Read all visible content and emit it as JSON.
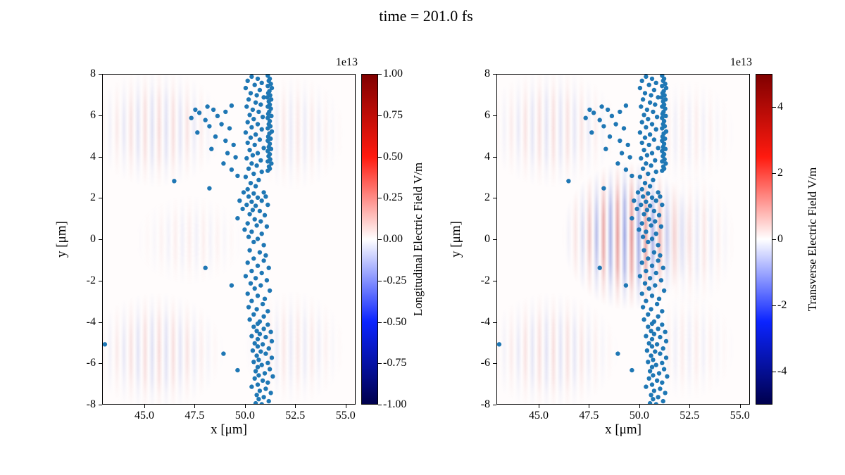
{
  "chart_data": {
    "type": "scatter+heatmap",
    "title": "time = 201.0 fs",
    "colormap": {
      "name": "seismic",
      "stops": [
        {
          "pos": 0.0,
          "color": "#00004d"
        },
        {
          "pos": 0.25,
          "color": "#0b24ff"
        },
        {
          "pos": 0.5,
          "color": "#ffffff"
        },
        {
          "pos": 0.75,
          "color": "#ff1a0f"
        },
        {
          "pos": 1.0,
          "color": "#800000"
        }
      ]
    },
    "scatter": {
      "marker_color": "#1f77b4",
      "marker_radius_px": 3.2,
      "points": [
        [
          51.1,
          7.95
        ],
        [
          51.2,
          7.8
        ],
        [
          51.15,
          7.7
        ],
        [
          51.25,
          7.55
        ],
        [
          51.1,
          7.45
        ],
        [
          51.3,
          7.35
        ],
        [
          51.18,
          7.2
        ],
        [
          51.12,
          7.1
        ],
        [
          51.22,
          7.0
        ],
        [
          51.08,
          6.9
        ],
        [
          51.27,
          6.8
        ],
        [
          51.15,
          6.7
        ],
        [
          51.2,
          6.55
        ],
        [
          51.1,
          6.45
        ],
        [
          51.25,
          6.35
        ],
        [
          51.17,
          6.2
        ],
        [
          51.12,
          6.1
        ],
        [
          51.28,
          6.0
        ],
        [
          51.1,
          5.9
        ],
        [
          51.2,
          5.75
        ],
        [
          51.15,
          5.6
        ],
        [
          51.23,
          5.5
        ],
        [
          51.1,
          5.4
        ],
        [
          51.3,
          5.25
        ],
        [
          51.18,
          5.15
        ],
        [
          51.12,
          5.0
        ],
        [
          51.24,
          4.9
        ],
        [
          51.1,
          4.8
        ],
        [
          51.2,
          4.65
        ],
        [
          51.15,
          4.5
        ],
        [
          51.26,
          4.4
        ],
        [
          51.1,
          4.3
        ],
        [
          51.2,
          4.15
        ],
        [
          51.14,
          4.05
        ],
        [
          51.22,
          3.9
        ],
        [
          51.1,
          3.8
        ],
        [
          51.28,
          3.7
        ],
        [
          51.16,
          3.55
        ],
        [
          51.2,
          3.45
        ],
        [
          51.1,
          3.35
        ],
        [
          50.3,
          7.9
        ],
        [
          50.6,
          7.8
        ],
        [
          50.1,
          7.7
        ],
        [
          50.8,
          7.6
        ],
        [
          50.45,
          7.5
        ],
        [
          50.0,
          7.35
        ],
        [
          50.7,
          7.25
        ],
        [
          50.25,
          7.1
        ],
        [
          50.55,
          7.0
        ],
        [
          50.9,
          6.9
        ],
        [
          50.15,
          6.8
        ],
        [
          50.5,
          6.65
        ],
        [
          50.75,
          6.55
        ],
        [
          50.05,
          6.45
        ],
        [
          50.35,
          6.3
        ],
        [
          50.65,
          6.2
        ],
        [
          50.2,
          6.05
        ],
        [
          50.85,
          5.95
        ],
        [
          50.4,
          5.85
        ],
        [
          50.1,
          5.7
        ],
        [
          50.6,
          5.6
        ],
        [
          50.3,
          5.45
        ],
        [
          50.8,
          5.35
        ],
        [
          50.0,
          5.2
        ],
        [
          50.5,
          5.1
        ],
        [
          50.25,
          4.95
        ],
        [
          50.7,
          4.85
        ],
        [
          50.1,
          4.7
        ],
        [
          50.45,
          4.6
        ],
        [
          50.9,
          4.45
        ],
        [
          50.2,
          4.35
        ],
        [
          50.6,
          4.2
        ],
        [
          50.35,
          4.1
        ],
        [
          50.05,
          3.95
        ],
        [
          50.75,
          3.85
        ],
        [
          50.3,
          3.7
        ],
        [
          50.55,
          3.6
        ],
        [
          50.15,
          3.45
        ],
        [
          50.8,
          3.3
        ],
        [
          50.4,
          3.2
        ],
        [
          50.0,
          3.05
        ],
        [
          50.65,
          2.9
        ],
        [
          50.25,
          2.75
        ],
        [
          50.5,
          2.6
        ],
        [
          50.1,
          2.45
        ],
        [
          47.5,
          6.3
        ],
        [
          47.7,
          6.15
        ],
        [
          48.1,
          6.45
        ],
        [
          48.4,
          6.3
        ],
        [
          47.3,
          5.9
        ],
        [
          48.0,
          5.8
        ],
        [
          48.6,
          6.0
        ],
        [
          49.0,
          6.2
        ],
        [
          49.3,
          6.5
        ],
        [
          48.2,
          5.5
        ],
        [
          48.8,
          5.6
        ],
        [
          49.2,
          5.4
        ],
        [
          47.6,
          5.2
        ],
        [
          48.5,
          5.0
        ],
        [
          49.0,
          4.8
        ],
        [
          49.4,
          4.6
        ],
        [
          48.3,
          4.4
        ],
        [
          49.1,
          4.2
        ],
        [
          49.5,
          4.0
        ],
        [
          48.9,
          3.7
        ],
        [
          49.3,
          3.4
        ],
        [
          49.6,
          3.1
        ],
        [
          46.45,
          2.85
        ],
        [
          48.2,
          2.5
        ],
        [
          49.9,
          2.3
        ],
        [
          50.4,
          2.25
        ],
        [
          50.9,
          2.3
        ],
        [
          50.15,
          2.1
        ],
        [
          50.6,
          2.05
        ],
        [
          51.0,
          2.1
        ],
        [
          49.7,
          1.9
        ],
        [
          50.3,
          1.85
        ],
        [
          50.8,
          1.9
        ],
        [
          50.05,
          1.7
        ],
        [
          50.5,
          1.65
        ],
        [
          51.1,
          1.7
        ],
        [
          49.85,
          1.5
        ],
        [
          50.35,
          1.45
        ],
        [
          50.7,
          1.4
        ],
        [
          50.2,
          1.25
        ],
        [
          50.95,
          1.2
        ],
        [
          49.6,
          1.05
        ],
        [
          50.45,
          1.0
        ],
        [
          50.75,
          0.9
        ],
        [
          50.1,
          0.8
        ],
        [
          50.55,
          0.7
        ],
        [
          51.05,
          0.65
        ],
        [
          49.95,
          0.5
        ],
        [
          50.3,
          0.4
        ],
        [
          50.8,
          0.3
        ],
        [
          50.15,
          0.15
        ],
        [
          50.6,
          0.05
        ],
        [
          50.4,
          -0.1
        ],
        [
          50.9,
          -0.25
        ],
        [
          50.2,
          -0.5
        ],
        [
          50.7,
          -0.6
        ],
        [
          51.0,
          -0.75
        ],
        [
          50.4,
          -0.9
        ],
        [
          50.9,
          -1.0
        ],
        [
          50.1,
          -1.1
        ],
        [
          50.6,
          -1.25
        ],
        [
          51.15,
          -1.35
        ],
        [
          50.3,
          -1.5
        ],
        [
          50.8,
          -1.6
        ],
        [
          50.0,
          -1.75
        ],
        [
          50.5,
          -1.85
        ],
        [
          51.05,
          -1.95
        ],
        [
          50.25,
          -2.1
        ],
        [
          50.75,
          -2.2
        ],
        [
          50.45,
          -2.35
        ],
        [
          51.2,
          -2.45
        ],
        [
          50.1,
          -2.6
        ],
        [
          50.6,
          -2.7
        ],
        [
          50.95,
          -2.85
        ],
        [
          50.3,
          -2.95
        ],
        [
          50.85,
          -3.1
        ],
        [
          50.15,
          -3.25
        ],
        [
          50.55,
          -3.35
        ],
        [
          51.1,
          -3.45
        ],
        [
          50.4,
          -3.6
        ],
        [
          50.9,
          -3.7
        ],
        [
          50.2,
          -3.85
        ],
        [
          50.7,
          -3.95
        ],
        [
          48.0,
          -1.35
        ],
        [
          49.3,
          -2.2
        ],
        [
          50.6,
          -4.05
        ],
        [
          51.1,
          -4.1
        ],
        [
          50.4,
          -4.2
        ],
        [
          50.9,
          -4.3
        ],
        [
          50.55,
          -4.4
        ],
        [
          51.25,
          -4.45
        ],
        [
          50.7,
          -4.55
        ],
        [
          50.3,
          -4.65
        ],
        [
          51.0,
          -4.7
        ],
        [
          50.6,
          -4.8
        ],
        [
          51.3,
          -4.9
        ],
        [
          50.45,
          -5.0
        ],
        [
          50.85,
          -5.05
        ],
        [
          50.6,
          -5.15
        ],
        [
          51.15,
          -5.25
        ],
        [
          50.35,
          -5.35
        ],
        [
          50.75,
          -5.4
        ],
        [
          51.0,
          -5.5
        ],
        [
          50.55,
          -5.6
        ],
        [
          51.3,
          -5.7
        ],
        [
          50.65,
          -5.8
        ],
        [
          50.4,
          -5.9
        ],
        [
          51.1,
          -5.95
        ],
        [
          50.8,
          -6.05
        ],
        [
          50.6,
          -6.15
        ],
        [
          51.2,
          -6.25
        ],
        [
          50.5,
          -6.35
        ],
        [
          50.95,
          -6.45
        ],
        [
          50.65,
          -6.55
        ],
        [
          51.35,
          -6.6
        ],
        [
          50.45,
          -6.7
        ],
        [
          50.85,
          -6.8
        ],
        [
          51.1,
          -6.9
        ],
        [
          50.6,
          -7.0
        ],
        [
          50.3,
          -7.1
        ],
        [
          51.0,
          -7.2
        ],
        [
          50.7,
          -7.3
        ],
        [
          51.25,
          -7.4
        ],
        [
          50.55,
          -7.5
        ],
        [
          50.9,
          -7.6
        ],
        [
          50.65,
          -7.7
        ],
        [
          51.15,
          -7.8
        ],
        [
          50.5,
          -7.9
        ],
        [
          50.8,
          -7.95
        ],
        [
          48.9,
          -5.5
        ],
        [
          49.6,
          -6.3
        ],
        [
          43.0,
          -5.05
        ]
      ]
    },
    "panels": [
      {
        "name": "longitudinal",
        "xlabel": "x [μm]",
        "ylabel": "y [μm]",
        "xlim": [
          42.9,
          55.5
        ],
        "ylim": [
          -8,
          8
        ],
        "xticks": {
          "values": [
            45.0,
            47.5,
            50.0,
            52.5,
            55.0
          ],
          "labels": [
            "45.0",
            "47.5",
            "50.0",
            "52.5",
            "55.0"
          ]
        },
        "yticks": {
          "values": [
            8,
            6,
            4,
            2,
            0,
            -2,
            -4,
            -6,
            -8
          ],
          "labels": [
            "8",
            "6",
            "4",
            "2",
            "0",
            "-2",
            "-4",
            "-6",
            "-8"
          ]
        },
        "colorbar": {
          "label": "Longitudinal Electric Field V/m",
          "scale": "1e13",
          "range": [
            -1,
            1
          ],
          "ticks": {
            "values": [
              1.0,
              0.75,
              0.5,
              0.25,
              0.0,
              -0.25,
              -0.5,
              -0.75,
              -1.0
            ],
            "labels": [
              "1.00",
              "0.75",
              "0.50",
              "0.25",
              "0.00",
              "-0.25",
              "-0.50",
              "-0.75",
              "-1.00"
            ]
          }
        }
      },
      {
        "name": "transverse",
        "xlabel": "x [μm]",
        "ylabel": "y [μm]",
        "xlim": [
          42.9,
          55.5
        ],
        "ylim": [
          -8,
          8
        ],
        "xticks": {
          "values": [
            45.0,
            47.5,
            50.0,
            52.5,
            55.0
          ],
          "labels": [
            "45.0",
            "47.5",
            "50.0",
            "52.5",
            "55.0"
          ]
        },
        "yticks": {
          "values": [
            8,
            6,
            4,
            2,
            0,
            -2,
            -4,
            -6,
            -8
          ],
          "labels": [
            "8",
            "6",
            "4",
            "2",
            "0",
            "-2",
            "-4",
            "-6",
            "-8"
          ]
        },
        "colorbar": {
          "label": "Transverse Electric Field V/m",
          "scale": "1e13",
          "range": [
            -5,
            5
          ],
          "ticks": {
            "values": [
              4,
              2,
              0,
              -2,
              -4
            ],
            "labels": [
              "4",
              "2",
              "0",
              "-2",
              "-4"
            ]
          }
        }
      }
    ],
    "field_patches": [
      {
        "panel": 0,
        "cx": 45.6,
        "cy": 5.4,
        "rx": 3.4,
        "ry": 2.9,
        "opacity": 0.16
      },
      {
        "panel": 0,
        "cx": 45.6,
        "cy": -5.4,
        "rx": 3.4,
        "ry": 2.9,
        "opacity": 0.16
      },
      {
        "panel": 0,
        "cx": 52.4,
        "cy": 5.2,
        "rx": 2.6,
        "ry": 2.8,
        "opacity": 0.1
      },
      {
        "panel": 0,
        "cx": 52.4,
        "cy": -5.2,
        "rx": 2.6,
        "ry": 2.8,
        "opacity": 0.1
      },
      {
        "panel": 0,
        "cx": 47.2,
        "cy": 0.0,
        "rx": 2.8,
        "ry": 2.2,
        "opacity": 0.07
      },
      {
        "panel": 1,
        "cx": 49.4,
        "cy": 0.2,
        "rx": 3.3,
        "ry": 3.6,
        "opacity": 0.5
      },
      {
        "panel": 1,
        "cx": 45.6,
        "cy": 5.4,
        "rx": 3.4,
        "ry": 2.9,
        "opacity": 0.15
      },
      {
        "panel": 1,
        "cx": 45.6,
        "cy": -5.4,
        "rx": 3.4,
        "ry": 2.9,
        "opacity": 0.15
      },
      {
        "panel": 1,
        "cx": 52.6,
        "cy": 0.0,
        "rx": 2.2,
        "ry": 3.2,
        "opacity": 0.12
      },
      {
        "panel": 1,
        "cx": 52.4,
        "cy": 5.2,
        "rx": 2.4,
        "ry": 2.6,
        "opacity": 0.08
      },
      {
        "panel": 1,
        "cx": 52.4,
        "cy": -5.2,
        "rx": 2.4,
        "ry": 2.6,
        "opacity": 0.08
      }
    ]
  }
}
